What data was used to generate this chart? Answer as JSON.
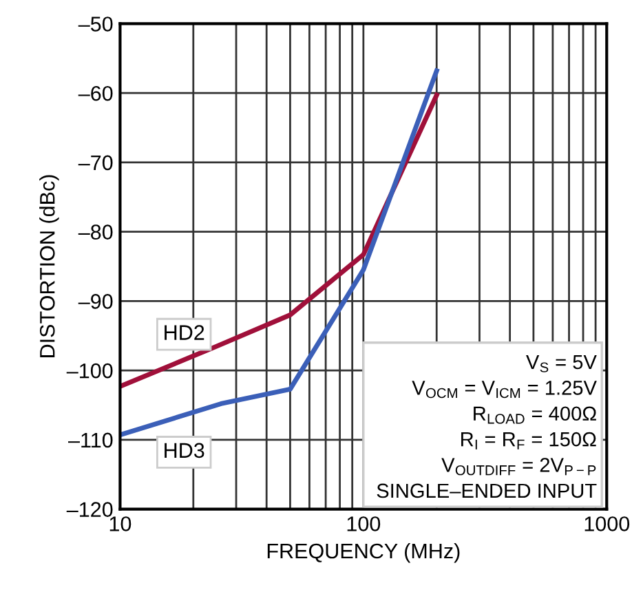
{
  "chart_data": {
    "type": "line",
    "xlabel": "FREQUENCY (MHz)",
    "ylabel": "DISTORTION (dBc)",
    "log": "x",
    "xlim": [
      10,
      1000
    ],
    "xticks": [
      10,
      100,
      1000
    ],
    "ylim": [
      -120,
      -50
    ],
    "yticks": [
      {
        "value": -120,
        "label": "–120"
      },
      {
        "value": -110,
        "label": "–110"
      },
      {
        "value": -100,
        "label": "–100"
      },
      {
        "value": -90,
        "label": "–90"
      },
      {
        "value": -80,
        "label": "–80"
      },
      {
        "value": -70,
        "label": "–70"
      },
      {
        "value": -60,
        "label": "–60"
      },
      {
        "value": -50,
        "label": "–50"
      }
    ],
    "grid": true,
    "series": [
      {
        "name": "HD2",
        "color": "#a0103a",
        "x": [
          10,
          25,
          50,
          100,
          200
        ],
        "values": [
          -102.3,
          -96.5,
          -92,
          -83.3,
          -60.3
        ]
      },
      {
        "name": "HD3",
        "color": "#3b5fb8",
        "x": [
          10,
          26,
          50,
          100,
          200
        ],
        "values": [
          -109.3,
          -104.8,
          -102.7,
          -85.5,
          -56.8
        ]
      }
    ],
    "annotations": [
      "V$_{S}$ = 5V",
      "V$_{OCM}$ = V$_{ICM}$ = 1.25V",
      "R$_{LOAD}$ = 400Ω",
      "R$_{I}$ = R$_{F}$ = 150Ω",
      "V$_{OUTDIFF}$ = 2V$_{P−P}$",
      "SINGLE–ENDED INPUT"
    ]
  }
}
